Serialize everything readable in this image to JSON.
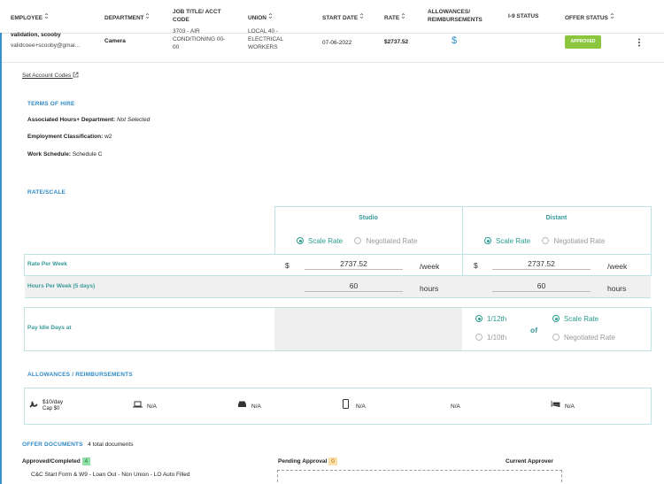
{
  "table_header": {
    "columns": [
      "EMPLOYEE",
      "DEPARTMENT",
      "JOB TITLE/ ACCT CODE",
      "UNION",
      "START DATE",
      "RATE",
      "ALLOWANCES/ REIMBURSEMENTS",
      "I-9 STATUS",
      "OFFER STATUS"
    ]
  },
  "row": {
    "employee_name": "validation, scooby",
    "employee_email": "validcoee+scooby@gmai...",
    "department": "Camera",
    "job_title": "3703 - AIR CONDITIONING 00-00",
    "union": "LOCAL 40 - ELECTRICAL WORKERS",
    "start_date": "07-06-2022",
    "rate": "$2737.52",
    "allowances_icon": "$",
    "offer_status": "APPROVED"
  },
  "set_account_codes": "Set Account Codes",
  "terms_of_hire": {
    "title": "TERMS OF HIRE",
    "fields": [
      {
        "label": "Associated Hours+ Department:",
        "value": "Not Selected"
      },
      {
        "label": "Employment Classification:",
        "value": "w2"
      },
      {
        "label": "Work Schedule:",
        "value": "Schedule C"
      }
    ]
  },
  "rate_scale": {
    "title": "RATE/SCALE",
    "columns": [
      {
        "name": "Studio",
        "options": [
          "Scale Rate",
          "Negotiated Rate"
        ],
        "selected": 0
      },
      {
        "name": "Distant",
        "options": [
          "Scale Rate",
          "Negotiated Rate"
        ],
        "selected": 0
      }
    ],
    "rows": [
      {
        "label": "Rate Per Week",
        "currency": "$",
        "studio": "2737.52",
        "distant": "2737.52",
        "unit": "/week"
      },
      {
        "label": "Hours Per Week (5 days)",
        "studio": "60",
        "distant": "60",
        "unit": "hours"
      }
    ],
    "idle": {
      "label": "Pay Idle Days at",
      "fractions": [
        "1/12th",
        "1/10th"
      ],
      "fraction_selected": 0,
      "connector": "of",
      "bases": [
        "Scale Rate",
        "Negotiated Rate"
      ],
      "basis_selected": 0
    }
  },
  "allowances": {
    "title": "ALLOWANCES / REIMBURSEMENTS",
    "items": [
      {
        "amount": "$10/day",
        "cap": "Cap $0"
      },
      {
        "amount": "N/A"
      },
      {
        "amount": "N/A"
      },
      {
        "amount": "N/A"
      },
      {
        "amount": "N/A"
      },
      {
        "amount": "N/A"
      }
    ]
  },
  "offer_documents": {
    "title": "OFFER DOCUMENTS",
    "count_text": "4 total documents",
    "approved_label": "Approved/Completed",
    "approved_count": 4,
    "approved_items": [
      "C&C Start Form & W9 - Loan Out - Non Union - LO Auto Filled"
    ],
    "pending_label": "Pending Approval",
    "pending_count": 0,
    "current_approver_label": "Current Approver"
  }
}
